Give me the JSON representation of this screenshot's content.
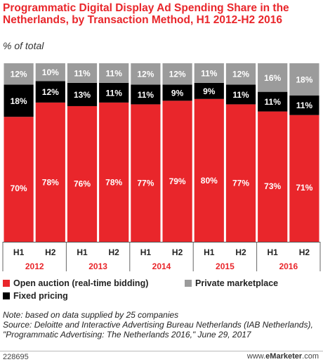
{
  "chart_data": {
    "type": "bar",
    "stacked": true,
    "title": "Programmatic Digital Display Ad Spending Share in the Netherlands, by Transaction Method, H1 2012-H2 2016",
    "subtitle": "% of total",
    "categories": [
      "H1",
      "H2",
      "H1",
      "H2",
      "H1",
      "H2",
      "H1",
      "H2",
      "H1",
      "H2"
    ],
    "groups": [
      "2012",
      "2013",
      "2014",
      "2015",
      "2016"
    ],
    "ylim": [
      0,
      100
    ],
    "series": [
      {
        "name": "Open auction (real-time bidding)",
        "color": "#e9262b",
        "values": [
          70,
          78,
          76,
          78,
          77,
          79,
          80,
          77,
          73,
          71
        ],
        "labels": [
          "70%",
          "78%",
          "76%",
          "78%",
          "77%",
          "79%",
          "80%",
          "77%",
          "73%",
          "71%"
        ]
      },
      {
        "name": "Fixed pricing",
        "color": "#000000",
        "values": [
          18,
          12,
          13,
          11,
          11,
          9,
          9,
          11,
          11,
          11
        ],
        "labels": [
          "18%",
          "12%",
          "13%",
          "11%",
          "11%",
          "9%",
          "9%",
          "11%",
          "11%",
          "11%"
        ]
      },
      {
        "name": "Private marketplace",
        "color": "#9b9b9b",
        "values": [
          12,
          10,
          11,
          11,
          12,
          12,
          11,
          12,
          16,
          18
        ],
        "labels": [
          "12%",
          "10%",
          "11%",
          "11%",
          "12%",
          "12%",
          "11%",
          "12%",
          "16%",
          "18%"
        ]
      }
    ]
  },
  "notes": {
    "note": "Note: based on data supplied by 25 companies",
    "source": "Source: Deloitte and Interactive Advertising Bureau Netherlands (IAB Netherlands), \"Programmatic Advertising: The Netherlands 2016,\" June 29, 2017"
  },
  "footer": {
    "id": "228695",
    "brand_prefix": "www.",
    "brand_name": "eMarketer",
    "brand_suffix": ".com"
  }
}
